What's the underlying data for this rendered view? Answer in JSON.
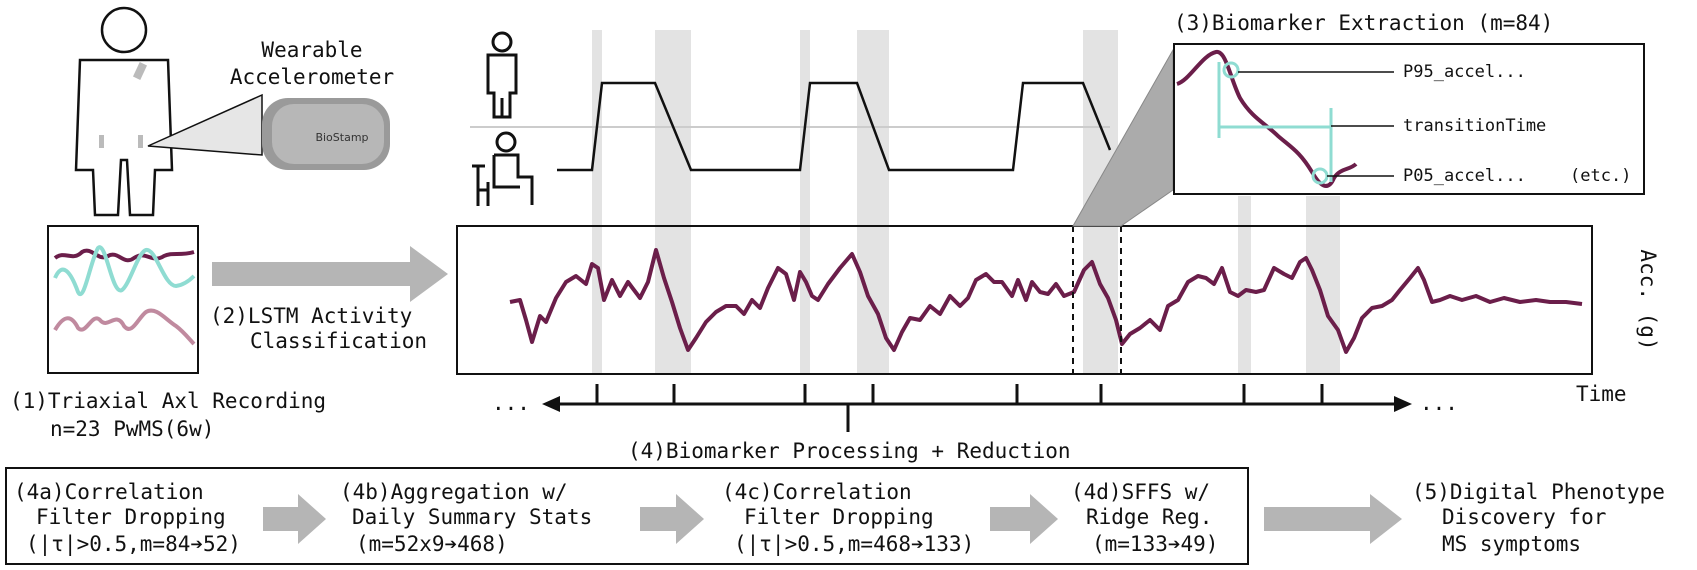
{
  "device": {
    "title_line1": "Wearable",
    "title_line2": "Accelerometer",
    "brand": "BioStamp"
  },
  "step1": {
    "line1": "(1)Triaxial Axl Recording",
    "line2": "n=23 PwMS(6w)"
  },
  "step2": {
    "line1": "(2)LSTM Activity",
    "line2": "Classification"
  },
  "step3": {
    "title": "(3)Biomarker Extraction (m=84)",
    "labels": [
      "P95_accel...",
      "transitionTime",
      "P05_accel..."
    ],
    "etc": "(etc.)"
  },
  "signal_axes": {
    "y_label": "Acc. (g)",
    "x_label": "Time",
    "ellipsis": "..."
  },
  "step4": {
    "title": "(4)Biomarker Processing + Reduction",
    "substeps": [
      {
        "lines": [
          "(4a)Correlation",
          "Filter Dropping",
          "(|τ|>0.5,m=84➔52)"
        ]
      },
      {
        "lines": [
          "(4b)Aggregation w/",
          "Daily Summary Stats",
          "(m=52x9➔468)"
        ]
      },
      {
        "lines": [
          "(4c)Correlation",
          "Filter Dropping",
          "(|τ|>0.5,m=468➔133)"
        ]
      },
      {
        "lines": [
          "(4d)SFFS w/",
          "Ridge Reg.",
          "(m=133➔49)"
        ]
      }
    ]
  },
  "step5": {
    "lines": [
      "(5)Digital Phenotype",
      "Discovery for",
      "MS symptoms"
    ]
  },
  "colors": {
    "signal": "#6b1e4a",
    "accel_cyan": "#8fdcd2",
    "accel_pink": "#c08a9f",
    "highlight_gray": "#e3e3e3",
    "arrow_gray": "#b5b5b5"
  }
}
